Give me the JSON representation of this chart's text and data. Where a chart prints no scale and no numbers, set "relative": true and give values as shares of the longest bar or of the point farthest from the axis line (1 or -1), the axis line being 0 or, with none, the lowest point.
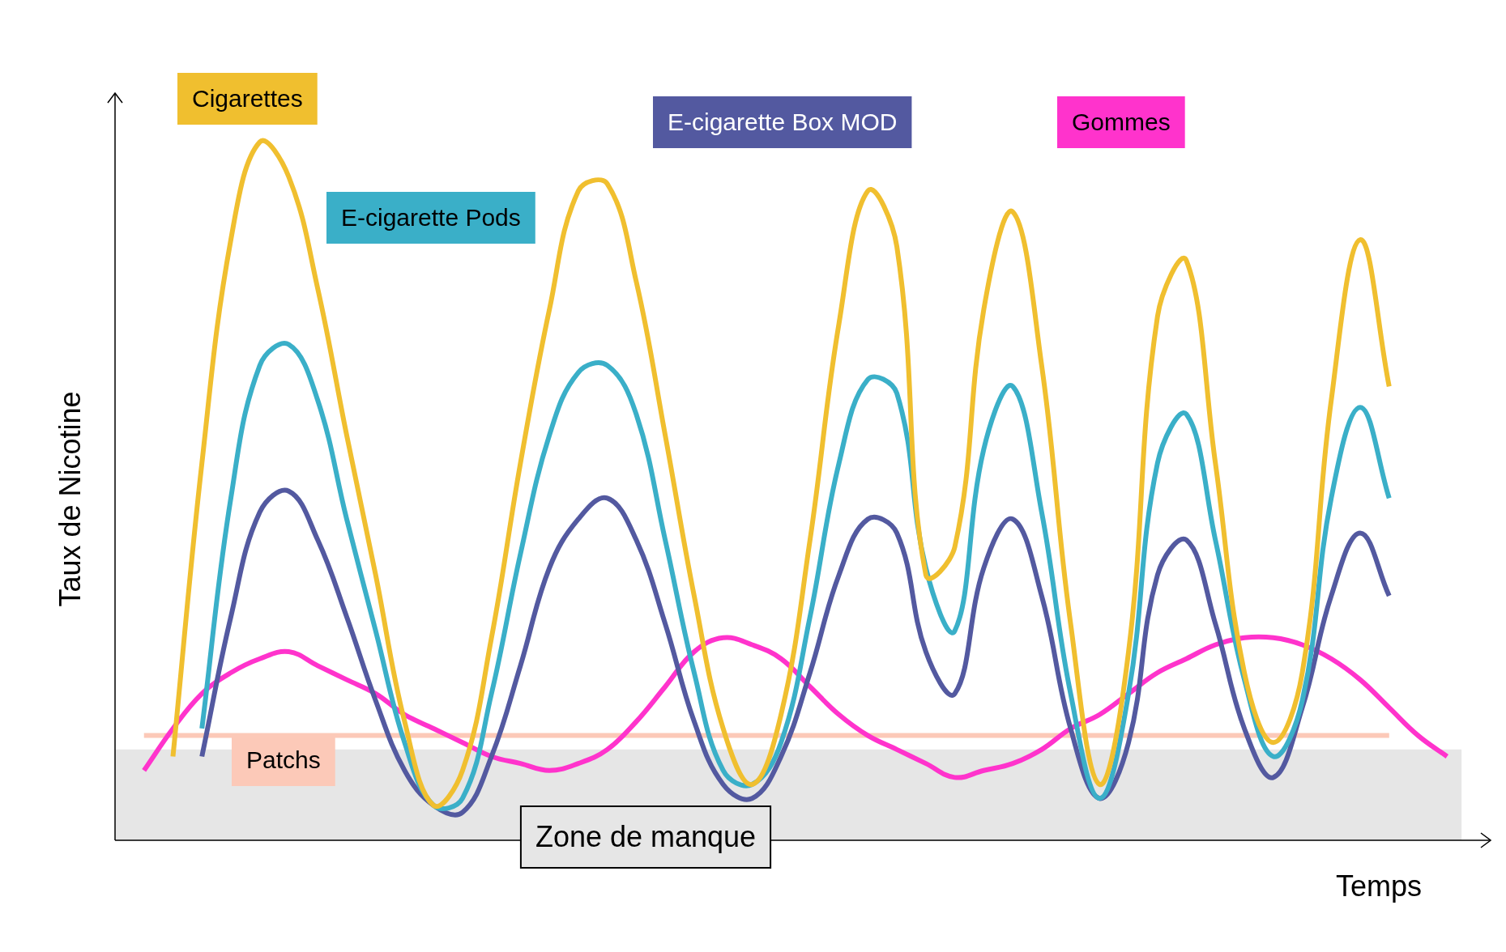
{
  "chart_data": {
    "type": "line",
    "relative": true,
    "ylabel": "Taux de Nicotine",
    "xlabel": "Temps",
    "legend": false,
    "marker": "none",
    "line_style": "solid",
    "categories": [
      null,
      null,
      null,
      null,
      null,
      null,
      null,
      null,
      null,
      null,
      null,
      null,
      null,
      null,
      null,
      null,
      null,
      null,
      null,
      null,
      null,
      null,
      null,
      null,
      null,
      null,
      null,
      null,
      null,
      null,
      null,
      null,
      null,
      null,
      null,
      null,
      null,
      null,
      null,
      null,
      null,
      null,
      null,
      null,
      null,
      null,
      null,
      null
    ],
    "series": [
      {
        "name": "Cigarettes",
        "color": "#f0bf2f",
        "values": [
          null,
          null,
          0.12,
          0.54,
          0.86,
          1,
          0.95,
          0.79,
          0.58,
          0.38,
          0.17,
          0.05,
          0.1,
          0.29,
          0.54,
          0.76,
          0.93,
          0.94,
          0.8,
          0.58,
          0.35,
          0.16,
          0.08,
          0.18,
          0.43,
          0.74,
          0.93,
          0.85,
          0.38,
          0.42,
          0.76,
          0.9,
          0.68,
          0.31,
          0.08,
          0.27,
          0.75,
          0.83,
          0.54,
          0.24,
          0.14,
          0.24,
          0.63,
          0.86,
          0.65,
          null,
          null,
          null
        ]
      },
      {
        "name": "E-cigarette Pods",
        "color": "#3aafc8",
        "values": [
          null,
          null,
          null,
          0.16,
          0.49,
          0.68,
          0.71,
          0.63,
          0.46,
          0.3,
          0.14,
          0.05,
          0.06,
          0.21,
          0.41,
          0.58,
          0.67,
          0.68,
          0.61,
          0.43,
          0.24,
          0.1,
          0.08,
          0.14,
          0.32,
          0.54,
          0.66,
          0.64,
          0.39,
          0.3,
          0.56,
          0.65,
          0.47,
          0.21,
          0.06,
          0.21,
          0.54,
          0.61,
          0.43,
          0.23,
          0.12,
          0.2,
          0.49,
          0.62,
          0.49,
          null,
          null,
          null
        ]
      },
      {
        "name": "E-cigarette Box MOD",
        "color": "#5359a0",
        "values": [
          null,
          null,
          null,
          0.12,
          0.32,
          0.47,
          0.5,
          0.43,
          0.32,
          0.2,
          0.1,
          0.05,
          0.04,
          0.12,
          0.25,
          0.39,
          0.46,
          0.49,
          0.43,
          0.31,
          0.17,
          0.08,
          0.06,
          0.12,
          0.24,
          0.38,
          0.46,
          0.44,
          0.27,
          0.21,
          0.39,
          0.46,
          0.35,
          0.16,
          0.06,
          0.14,
          0.38,
          0.43,
          0.31,
          0.16,
          0.09,
          0.19,
          0.35,
          0.44,
          0.35,
          null,
          null,
          null
        ]
      },
      {
        "name": "Gommes",
        "color": "#ff33cc",
        "values": [
          null,
          0.1,
          0.16,
          0.21,
          0.24,
          0.26,
          0.27,
          0.25,
          0.23,
          0.21,
          0.18,
          0.16,
          0.14,
          0.12,
          0.11,
          0.1,
          0.11,
          0.13,
          0.17,
          0.22,
          0.27,
          0.29,
          0.28,
          0.26,
          0.22,
          0.18,
          0.15,
          0.13,
          0.11,
          0.09,
          0.1,
          0.11,
          0.13,
          0.16,
          0.18,
          0.21,
          0.24,
          0.26,
          0.28,
          0.29,
          0.29,
          0.28,
          0.26,
          0.23,
          0.19,
          0.15,
          0.12,
          null
        ]
      },
      {
        "name": "Patchs",
        "color": "#fcc9b8",
        "values": [
          null,
          0.15,
          0.15,
          0.15,
          0.15,
          0.15,
          0.15,
          0.15,
          0.15,
          0.15,
          0.15,
          0.15,
          0.15,
          0.15,
          0.15,
          0.15,
          0.15,
          0.15,
          0.15,
          0.15,
          0.15,
          0.15,
          0.15,
          0.15,
          0.15,
          0.15,
          0.15,
          0.15,
          0.15,
          0.15,
          0.15,
          0.15,
          0.15,
          0.15,
          0.15,
          0.15,
          0.15,
          0.15,
          0.15,
          0.15,
          0.15,
          0.15,
          0.15,
          0.15,
          0.15,
          null,
          null,
          null
        ]
      }
    ],
    "bands": [
      {
        "axis": "y",
        "from": 0,
        "to": 0.13,
        "label": "Zone de manque",
        "color": "#e6e6e6"
      }
    ]
  }
}
